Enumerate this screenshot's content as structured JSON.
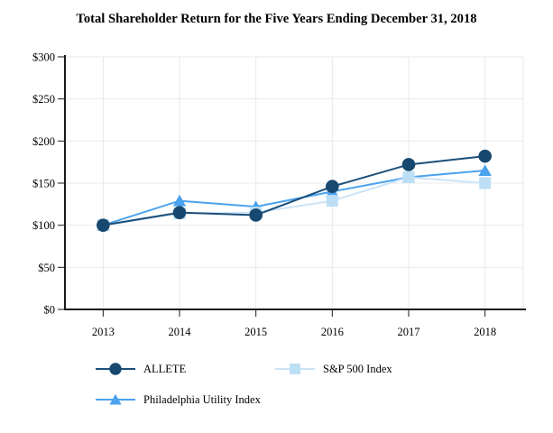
{
  "title": "Total Shareholder Return for the Five Years Ending December 31, 2018",
  "chart_data": {
    "type": "line",
    "title": "Total Shareholder Return for the Five Years Ending December 31, 2018",
    "x": [
      "2013",
      "2014",
      "2015",
      "2016",
      "2017",
      "2018"
    ],
    "series": [
      {
        "name": "ALLETE",
        "marker": "circle",
        "color": "#17486F",
        "line_color": "#1C4E79",
        "values": [
          100,
          115,
          112,
          146,
          172,
          182
        ]
      },
      {
        "name": "S&P 500 Index",
        "marker": "square",
        "color": "#BDDFF6",
        "line_color": "#CBE4F8",
        "values": [
          100,
          114,
          115,
          129,
          157,
          150
        ]
      },
      {
        "name": "Philadelphia Utility Index",
        "marker": "triangle",
        "color": "#4BA2EE",
        "line_color": "#4BA2EE",
        "values": [
          100,
          129,
          122,
          140,
          157,
          165
        ]
      }
    ],
    "xlabel": "",
    "ylabel": "",
    "ylim": [
      0,
      300
    ],
    "ytick_step": 50,
    "ytick_labels": [
      "$0",
      "$50",
      "$100",
      "$150",
      "$200",
      "$250",
      "$300"
    ],
    "grid": true,
    "legend_position": "bottom",
    "colors": {
      "axis": "#1A1A1A",
      "grid": "#E9E9E9",
      "text": "#000000"
    }
  }
}
